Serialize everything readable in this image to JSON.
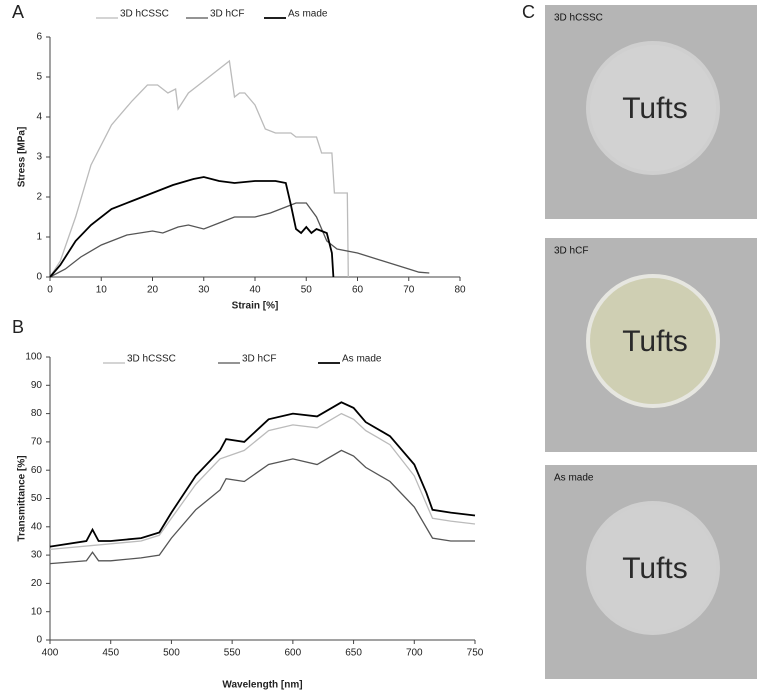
{
  "chart_data": [
    {
      "type": "line",
      "panel_label": "A",
      "x_label": "Strain [%]",
      "y_label": "Stress [MPa]",
      "xlim": [
        0,
        80
      ],
      "xticks": [
        0,
        10,
        20,
        30,
        40,
        50,
        60,
        70,
        80
      ],
      "ylim": [
        0,
        6
      ],
      "yticks": [
        0,
        1,
        2,
        3,
        4,
        5,
        6
      ],
      "grid": false,
      "series": [
        {
          "name": "3D hCSSC",
          "color": "#bbbbbb",
          "x": [
            0,
            2,
            5,
            8,
            12,
            16,
            19,
            21,
            23,
            24.5,
            25,
            27,
            30,
            33,
            35,
            36,
            37,
            38,
            40,
            42,
            44,
            46,
            47,
            48,
            52,
            53,
            55,
            55.5,
            57,
            58,
            58.2
          ],
          "values": [
            0,
            0.4,
            1.5,
            2.8,
            3.8,
            4.4,
            4.8,
            4.8,
            4.6,
            4.7,
            4.2,
            4.6,
            4.9,
            5.2,
            5.4,
            4.5,
            4.6,
            4.6,
            4.3,
            3.7,
            3.6,
            3.6,
            3.6,
            3.5,
            3.5,
            3.1,
            3.1,
            2.1,
            2.1,
            2.1,
            0
          ]
        },
        {
          "name": "3D hCF",
          "color": "#555555",
          "x": [
            0,
            3,
            6,
            10,
            15,
            20,
            22,
            25,
            27,
            30,
            33,
            36,
            40,
            43,
            46,
            48,
            50,
            52,
            54,
            56,
            60,
            65,
            70,
            72,
            74
          ],
          "values": [
            0,
            0.2,
            0.5,
            0.8,
            1.05,
            1.15,
            1.1,
            1.25,
            1.3,
            1.2,
            1.35,
            1.5,
            1.5,
            1.6,
            1.75,
            1.85,
            1.85,
            1.5,
            0.9,
            0.7,
            0.6,
            0.4,
            0.2,
            0.12,
            0.1
          ]
        },
        {
          "name": "As made",
          "color": "#000000",
          "x": [
            0,
            2,
            5,
            8,
            12,
            16,
            20,
            24,
            28,
            30,
            33,
            36,
            40,
            44,
            46,
            47,
            48,
            49,
            50,
            51,
            52,
            53,
            54,
            55,
            55.3
          ],
          "values": [
            0,
            0.3,
            0.9,
            1.3,
            1.7,
            1.9,
            2.1,
            2.3,
            2.45,
            2.5,
            2.4,
            2.35,
            2.4,
            2.4,
            2.35,
            1.8,
            1.2,
            1.1,
            1.25,
            1.1,
            1.2,
            1.15,
            1.1,
            0.6,
            0
          ]
        }
      ]
    },
    {
      "type": "line",
      "panel_label": "B",
      "x_label": "Wavelength [nm]",
      "y_label": "Transmittance [%]",
      "xlim": [
        400,
        750
      ],
      "xticks": [
        400,
        450,
        500,
        550,
        600,
        650,
        700,
        750
      ],
      "ylim": [
        0,
        100
      ],
      "yticks": [
        0,
        10,
        20,
        30,
        40,
        50,
        60,
        70,
        80,
        90,
        100
      ],
      "grid": false,
      "series": [
        {
          "name": "3D hCSSC",
          "color": "#bbbbbb",
          "x": [
            400,
            450,
            475,
            490,
            500,
            520,
            540,
            560,
            580,
            600,
            620,
            640,
            650,
            660,
            680,
            700,
            715,
            730,
            750
          ],
          "values": [
            32,
            34,
            35,
            37,
            43,
            55,
            64,
            67,
            74,
            76,
            75,
            80,
            78,
            74,
            69,
            58,
            43,
            42,
            41
          ]
        },
        {
          "name": "3D hCF",
          "color": "#555555",
          "x": [
            400,
            430,
            435,
            440,
            450,
            475,
            490,
            500,
            520,
            540,
            545,
            560,
            580,
            600,
            620,
            640,
            650,
            660,
            680,
            700,
            715,
            730,
            750
          ],
          "values": [
            27,
            28,
            31,
            28,
            28,
            29,
            30,
            36,
            46,
            53,
            57,
            56,
            62,
            64,
            62,
            67,
            65,
            61,
            56,
            47,
            36,
            35,
            35
          ]
        },
        {
          "name": "As made",
          "color": "#000000",
          "x": [
            400,
            430,
            435,
            440,
            450,
            475,
            490,
            500,
            520,
            540,
            545,
            560,
            580,
            600,
            620,
            640,
            650,
            660,
            680,
            700,
            710,
            715,
            730,
            750
          ],
          "values": [
            33,
            35,
            39,
            35,
            35,
            36,
            38,
            45,
            58,
            67,
            71,
            70,
            78,
            80,
            79,
            84,
            82,
            77,
            72,
            62,
            52,
            46,
            45,
            44
          ]
        }
      ]
    }
  ],
  "photos": {
    "panel_label": "C",
    "items": [
      {
        "label": "3D hCSSC",
        "text": "Tufts"
      },
      {
        "label": "3D hCF",
        "text": "Tufts"
      },
      {
        "label": "As made",
        "text": "Tufts"
      }
    ]
  }
}
